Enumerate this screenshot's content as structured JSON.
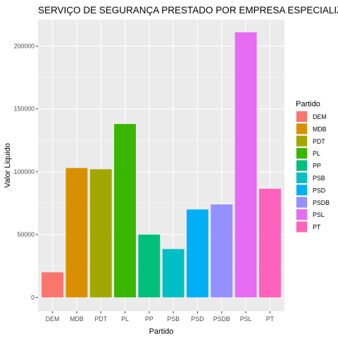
{
  "chart_data": {
    "type": "bar",
    "title": "SERVIÇO DE SEGURANÇA PRESTADO POR EMPRESA ESPECIALIZADA",
    "xlabel": "Partido",
    "ylabel": "Valor Liquido",
    "categories": [
      "DEM",
      "MDB",
      "PDT",
      "PL",
      "PP",
      "PSB",
      "PSD",
      "PSDB",
      "PSL",
      "PT"
    ],
    "values": [
      20000,
      103000,
      102000,
      138000,
      50000,
      38500,
      70000,
      74000,
      211000,
      86500
    ],
    "colors": [
      "#F8766D",
      "#D89000",
      "#A3A500",
      "#39B600",
      "#00BF7D",
      "#00BFC4",
      "#00B0F6",
      "#9590FF",
      "#E76BF3",
      "#FF62BC"
    ],
    "yticks": [
      0,
      50000,
      100000,
      150000,
      200000
    ],
    "ylim": [
      -11000,
      221000
    ],
    "grid": true,
    "legend": {
      "title": "Partido",
      "position": "right",
      "entries": [
        "DEM",
        "MDB",
        "PDT",
        "PL",
        "PP",
        "PSB",
        "PSD",
        "PSDB",
        "PSL",
        "PT"
      ]
    }
  }
}
